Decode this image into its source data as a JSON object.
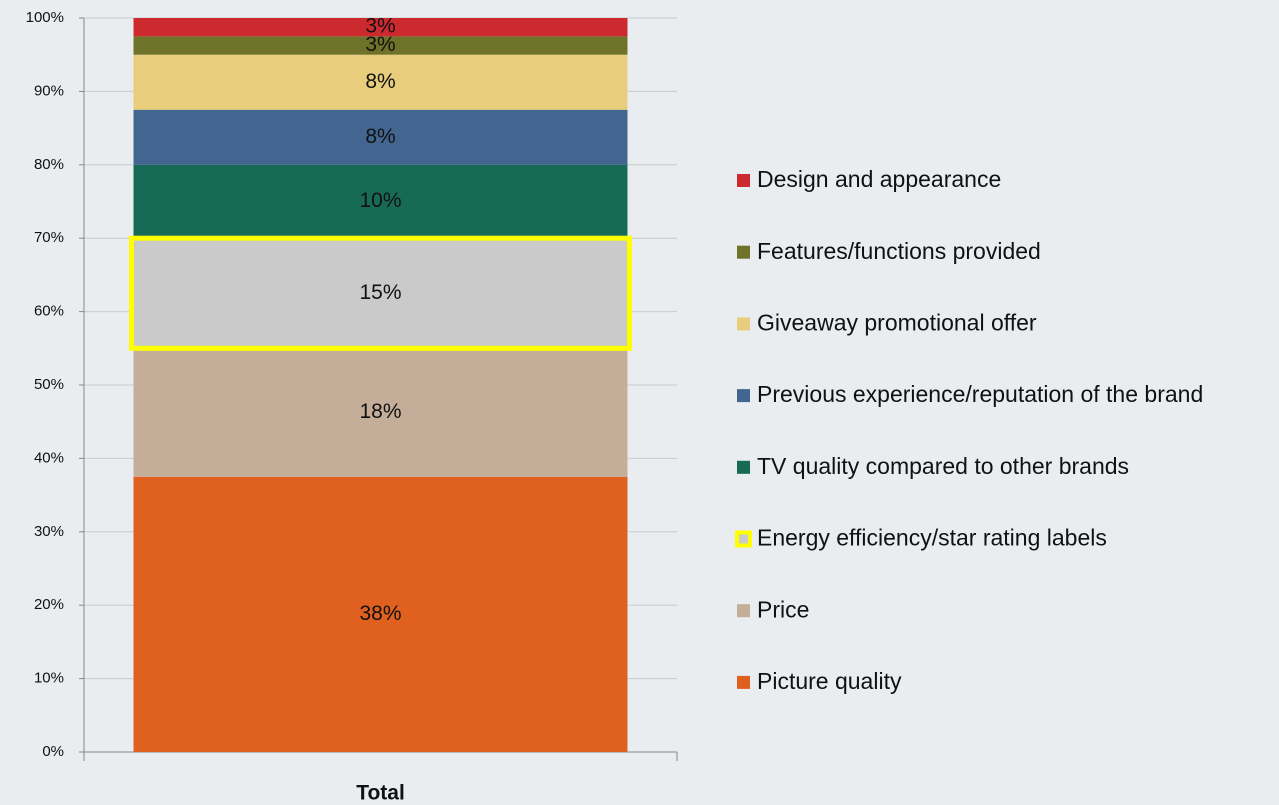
{
  "chart_data": {
    "type": "stacked_bar",
    "categories": [
      "Total"
    ],
    "series": [
      {
        "name": "Picture quality",
        "color": "#e06020",
        "values": [
          37.5
        ],
        "value_labels": [
          "38%"
        ]
      },
      {
        "name": "Price",
        "color": "#c4ae9a",
        "values": [
          17.5
        ],
        "value_labels": [
          "18%"
        ]
      },
      {
        "name": "Energy efficiency/star rating labels",
        "color": "#c9cac9",
        "values": [
          15
        ],
        "value_labels": [
          "15%"
        ]
      },
      {
        "name": "TV quality compared to other brands",
        "color": "#176a55",
        "values": [
          10
        ],
        "value_labels": [
          "10%"
        ]
      },
      {
        "name": "Previous experience/reputation of the brand",
        "color": "#426690",
        "values": [
          7.5
        ],
        "value_labels": [
          "8%"
        ]
      },
      {
        "name": "Giveaway promotional offer",
        "color": "#e8cd7c",
        "values": [
          7.5
        ],
        "value_labels": [
          "8%"
        ]
      },
      {
        "name": "Features/functions provided",
        "color": "#6f7229",
        "values": [
          2.5
        ],
        "value_labels": [
          "3%"
        ]
      },
      {
        "name": "Design and appearance",
        "color": "#cc2a2f",
        "values": [
          2.5
        ],
        "value_labels": [
          "3%"
        ]
      }
    ],
    "ylim": [
      0,
      100
    ],
    "yticks": [
      {
        "value": 0,
        "label": "0%"
      },
      {
        "value": 10,
        "label": "10%"
      },
      {
        "value": 20,
        "label": "20%"
      },
      {
        "value": 30,
        "label": "30%"
      },
      {
        "value": 40,
        "label": "40%"
      },
      {
        "value": 50,
        "label": "50%"
      },
      {
        "value": 60,
        "label": "60%"
      },
      {
        "value": 70,
        "label": "70%"
      },
      {
        "value": 80,
        "label": "80%"
      },
      {
        "value": 90,
        "label": "90%"
      },
      {
        "value": 100,
        "label": "100%"
      }
    ],
    "grid": true,
    "legend": "right",
    "highlight": {
      "series": 2,
      "color": "#ffff00"
    }
  }
}
